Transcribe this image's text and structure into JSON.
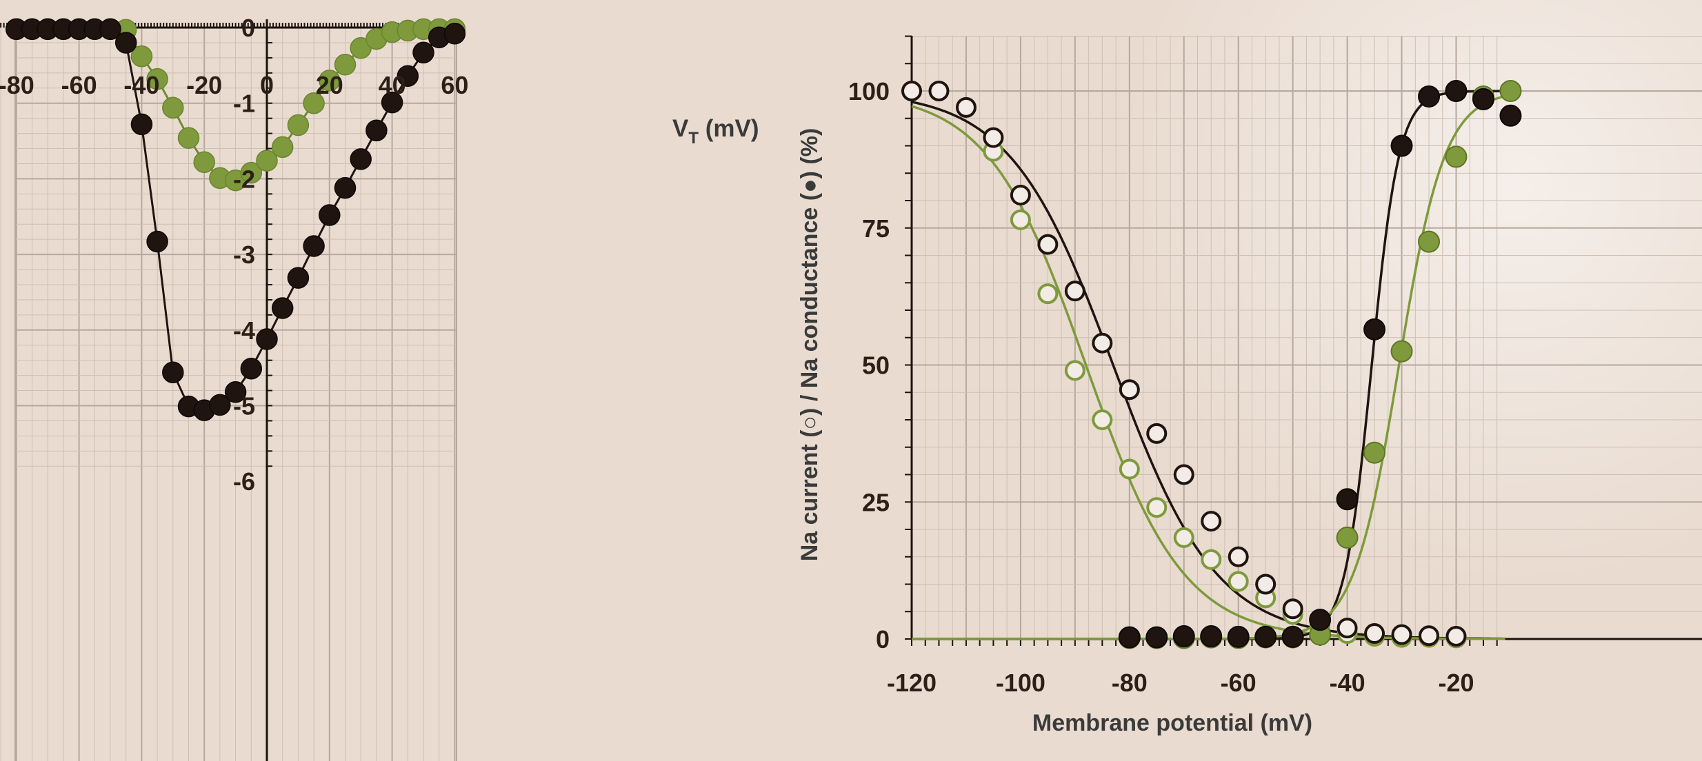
{
  "colors": {
    "background": "#e9dbd0",
    "dark_series": "#1f140f",
    "green_series": "#7e9a3c",
    "grid_major": "#b6a89c",
    "grid_minor": "#cdbfb3",
    "axis": "#1a120d"
  },
  "chart_data": [
    {
      "type": "scatter",
      "title": "",
      "xlabel": "V",
      "xlabel_sub": "T",
      "xlabel_unit": " (mV)",
      "ylabel": "",
      "xlim": [
        -85,
        60
      ],
      "ylim": [
        -6,
        0.3
      ],
      "x_ticks": [
        -80,
        -60,
        -40,
        -20,
        0,
        20,
        40,
        60
      ],
      "x_tick_labels": [
        "-80",
        "-60",
        "-40",
        "-20",
        "0",
        "20",
        "40",
        "60"
      ],
      "y_ticks": [
        0,
        -1,
        -2,
        -3,
        -4,
        -5,
        -6
      ],
      "y_tick_labels": [
        "0",
        "-1",
        "-2",
        "-3",
        "-4",
        "-5",
        "-6"
      ],
      "grid": true,
      "series": [
        {
          "color": "#1f140f",
          "x": [
            -80,
            -75,
            -70,
            -65,
            -60,
            -55,
            -50,
            -45,
            -40,
            -35,
            -30,
            -25,
            -20,
            -15,
            -10,
            -5,
            0,
            5,
            10,
            15,
            20,
            25,
            30,
            35,
            40,
            45,
            50,
            55,
            60
          ],
          "y": [
            -0.02,
            -0.02,
            -0.02,
            -0.02,
            -0.02,
            -0.02,
            -0.02,
            -0.2,
            -1.28,
            -2.83,
            -4.56,
            -5.01,
            -5.06,
            -4.99,
            -4.82,
            -4.51,
            -4.12,
            -3.71,
            -3.31,
            -2.89,
            -2.48,
            -2.12,
            -1.74,
            -1.36,
            -0.99,
            -0.64,
            -0.33,
            -0.13,
            -0.08
          ]
        },
        {
          "color": "#7e9a3c",
          "x": [
            -80,
            -75,
            -70,
            -65,
            -60,
            -55,
            -50,
            -45,
            -40,
            -35,
            -30,
            -25,
            -20,
            -15,
            -10,
            -5,
            0,
            5,
            10,
            15,
            20,
            25,
            30,
            35,
            40,
            45,
            50,
            55,
            60
          ],
          "y": [
            -0.02,
            -0.02,
            -0.02,
            -0.02,
            -0.02,
            -0.02,
            -0.02,
            -0.03,
            -0.38,
            -0.68,
            -1.06,
            -1.46,
            -1.78,
            -1.99,
            -2.02,
            -1.92,
            -1.76,
            -1.58,
            -1.29,
            -1.0,
            -0.7,
            -0.49,
            -0.27,
            -0.15,
            -0.06,
            -0.04,
            -0.02,
            -0.02,
            -0.02
          ]
        }
      ]
    },
    {
      "type": "scatter",
      "title": "",
      "xlabel": "Membrane potential  (mV)",
      "ylabel": "Na current (○)  /  Na conductance (●) (%)",
      "xlim": [
        -120,
        -11
      ],
      "ylim": [
        0,
        110
      ],
      "x_ticks": [
        -120,
        -100,
        -80,
        -60,
        -40,
        -20
      ],
      "x_tick_labels": [
        "-120",
        "-100",
        "-80",
        "-60",
        "-40",
        "-20"
      ],
      "y_ticks": [
        0,
        25,
        50,
        75,
        100
      ],
      "y_tick_labels": [
        "0",
        "25",
        "50",
        "75",
        "100"
      ],
      "grid": true,
      "series": [
        {
          "marker": "open",
          "color": "#1f140f",
          "x": [
            -120,
            -115,
            -110,
            -105,
            -100,
            -95,
            -90,
            -85,
            -80,
            -75,
            -70,
            -65,
            -60,
            -55,
            -50,
            -45,
            -40,
            -35,
            -30,
            -25,
            -20
          ],
          "y": [
            100,
            100,
            97,
            91.5,
            81,
            72,
            63.5,
            54,
            45.5,
            37.5,
            30,
            21.5,
            15,
            10,
            5.5,
            3.5,
            2,
            1,
            0.8,
            0.6,
            0.5
          ]
        },
        {
          "marker": "open",
          "color": "#7e9a3c",
          "x": [
            -105,
            -100,
            -95,
            -90,
            -85,
            -80,
            -75,
            -70,
            -65,
            -60,
            -55,
            -50,
            -45,
            -40,
            -35,
            -30,
            -25,
            -20
          ],
          "y": [
            89,
            76.5,
            63,
            49,
            40,
            31,
            24,
            18.5,
            14.5,
            10.5,
            7.5,
            4.5,
            2.5,
            1,
            0.5,
            0.3,
            0.3,
            0.2
          ]
        },
        {
          "marker": "filled",
          "color": "#1f140f",
          "x": [
            -80,
            -75,
            -70,
            -65,
            -60,
            -55,
            -50,
            -45,
            -40,
            -35,
            -30,
            -25,
            -20,
            -15,
            -10
          ],
          "y": [
            0.3,
            0.3,
            0.5,
            0.5,
            0.4,
            0.4,
            0.4,
            3.5,
            25.5,
            56.5,
            90,
            99,
            100,
            98.5,
            95.5
          ]
        },
        {
          "marker": "filled",
          "color": "#7e9a3c",
          "x": [
            -80,
            -75,
            -70,
            -65,
            -60,
            -55,
            -50,
            -45,
            -40,
            -35,
            -30,
            -25,
            -20,
            -15,
            -10
          ],
          "y": [
            0.2,
            0.2,
            0.2,
            0.3,
            0.2,
            0.3,
            0.3,
            0.8,
            18.5,
            34,
            52.5,
            72.5,
            88,
            99,
            100
          ]
        }
      ]
    }
  ]
}
